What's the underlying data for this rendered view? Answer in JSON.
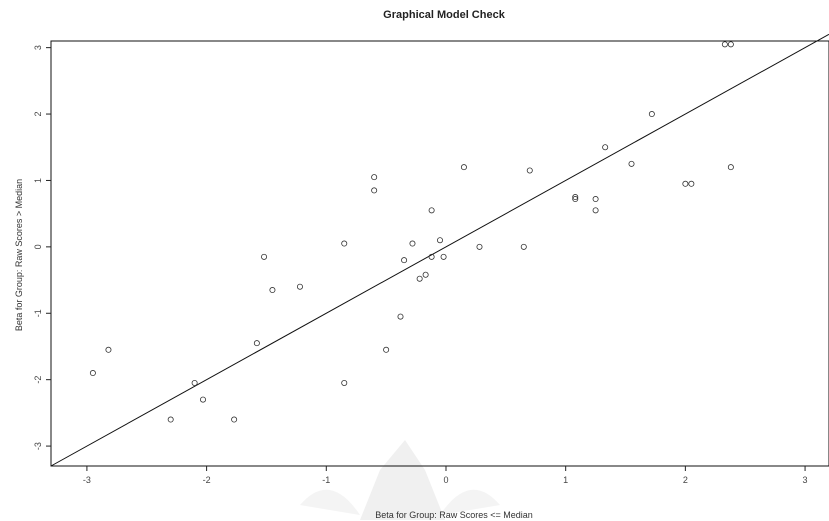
{
  "chart_data": {
    "type": "scatter",
    "title": "Graphical Model Check",
    "xlabel": "Beta for Group: Raw Scores <= Median",
    "ylabel": "Beta for Group: Raw Scores > Median",
    "xlim": [
      -3.3,
      3.2
    ],
    "ylim": [
      -3.3,
      3.1
    ],
    "x_ticks": [
      -3,
      -2,
      -1,
      0,
      1,
      2,
      3
    ],
    "y_ticks": [
      -3,
      -2,
      -1,
      0,
      1,
      2,
      3
    ],
    "x_tick_labels": [
      "-3",
      "-2",
      "-1",
      "0",
      "1",
      "2",
      "3"
    ],
    "y_tick_labels": [
      "-3",
      "-2",
      "-1",
      "0",
      "1",
      "2",
      "3"
    ],
    "grid": false,
    "reference_line": {
      "x": [
        -3.3,
        3.2
      ],
      "y": [
        -3.3,
        3.2
      ]
    },
    "points": [
      {
        "x": -2.95,
        "y": -1.9
      },
      {
        "x": -2.82,
        "y": -1.55
      },
      {
        "x": -2.3,
        "y": -2.6
      },
      {
        "x": -2.1,
        "y": -2.05
      },
      {
        "x": -2.03,
        "y": -2.3
      },
      {
        "x": -1.77,
        "y": -2.6
      },
      {
        "x": -1.58,
        "y": -1.45
      },
      {
        "x": -1.52,
        "y": -0.15
      },
      {
        "x": -1.45,
        "y": -0.65
      },
      {
        "x": -1.22,
        "y": -0.6
      },
      {
        "x": -0.85,
        "y": 0.05
      },
      {
        "x": -0.85,
        "y": -2.05
      },
      {
        "x": -0.6,
        "y": 1.05
      },
      {
        "x": -0.6,
        "y": 0.85
      },
      {
        "x": -0.5,
        "y": -1.55
      },
      {
        "x": -0.38,
        "y": -1.05
      },
      {
        "x": -0.35,
        "y": -0.2
      },
      {
        "x": -0.28,
        "y": 0.05
      },
      {
        "x": -0.22,
        "y": -0.48
      },
      {
        "x": -0.17,
        "y": -0.42
      },
      {
        "x": -0.12,
        "y": -0.15
      },
      {
        "x": -0.12,
        "y": 0.55
      },
      {
        "x": -0.05,
        "y": 0.1
      },
      {
        "x": -0.02,
        "y": -0.15
      },
      {
        "x": 0.15,
        "y": 1.2
      },
      {
        "x": 0.28,
        "y": 0.0
      },
      {
        "x": 0.65,
        "y": 0.0
      },
      {
        "x": 0.7,
        "y": 1.15
      },
      {
        "x": 1.08,
        "y": 0.75
      },
      {
        "x": 1.08,
        "y": 0.72
      },
      {
        "x": 1.25,
        "y": 0.55
      },
      {
        "x": 1.25,
        "y": 0.72
      },
      {
        "x": 1.33,
        "y": 1.5
      },
      {
        "x": 1.55,
        "y": 1.25
      },
      {
        "x": 1.72,
        "y": 2.0
      },
      {
        "x": 2.0,
        "y": 0.95
      },
      {
        "x": 2.05,
        "y": 0.95
      },
      {
        "x": 2.33,
        "y": 3.05
      },
      {
        "x": 2.38,
        "y": 3.05
      },
      {
        "x": 2.38,
        "y": 1.2
      }
    ]
  }
}
